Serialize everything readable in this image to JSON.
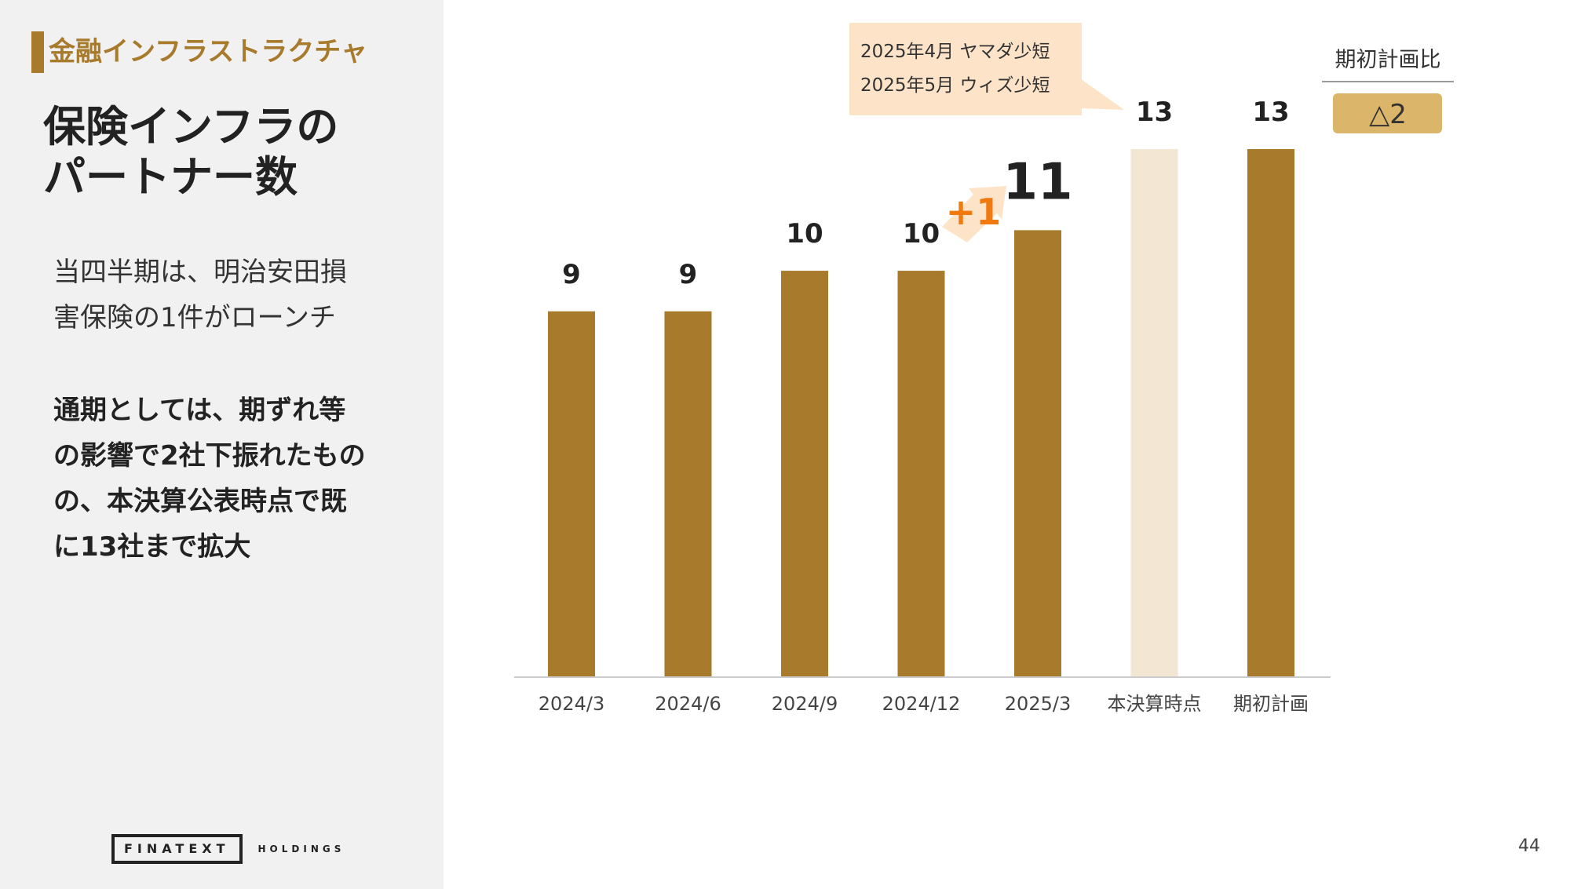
{
  "sidebar": {
    "section_tag": "金融インフラストラクチャ",
    "title_line_1": "保険インフラの",
    "title_line_2": "パートナー数",
    "body_line_1": "当四半期は、明治安田損",
    "body_line_2": "害保険の1件がローンチ",
    "emphasis_line_1": "通期としては、期ずれ等",
    "emphasis_line_2": "の影響で2社下振れたもの",
    "emphasis_line_3": "の、本決算公表時点で既",
    "emphasis_line_4": "に13社まで拡大"
  },
  "brand": {
    "main": "FINATEXT",
    "sub": "HOLDINGS"
  },
  "page_number": "44",
  "colors": {
    "bar": "#a87a2c",
    "bar_light": "#f3e6d2",
    "accent_orange": "#f07a10",
    "callout_bg": "#fde3c8",
    "badge_bg": "#dbb56a",
    "sidebar_bg": "#f1f1f1"
  },
  "chart_data": {
    "type": "bar",
    "categories": [
      "2024/3",
      "2024/6",
      "2024/9",
      "2024/12",
      "2025/3",
      "本決算時点",
      "期初計画"
    ],
    "values": [
      9,
      9,
      10,
      10,
      11,
      13,
      13
    ],
    "data_labels": [
      "9",
      "9",
      "10",
      "10",
      "11",
      "13",
      "13"
    ],
    "highlight_index": 4,
    "light_bar_index": 5,
    "ylim": [
      0,
      13
    ],
    "grid": false,
    "legend": "none",
    "increase": {
      "label": "+1",
      "from_index": 3,
      "to_index": 4
    },
    "callout": {
      "lines": [
        "2025年4月 ヤマダ少短",
        "2025年5月 ウィズ少短"
      ],
      "points_to_index": 5
    },
    "comparison": {
      "label": "期初計画比",
      "value": "△2"
    }
  }
}
